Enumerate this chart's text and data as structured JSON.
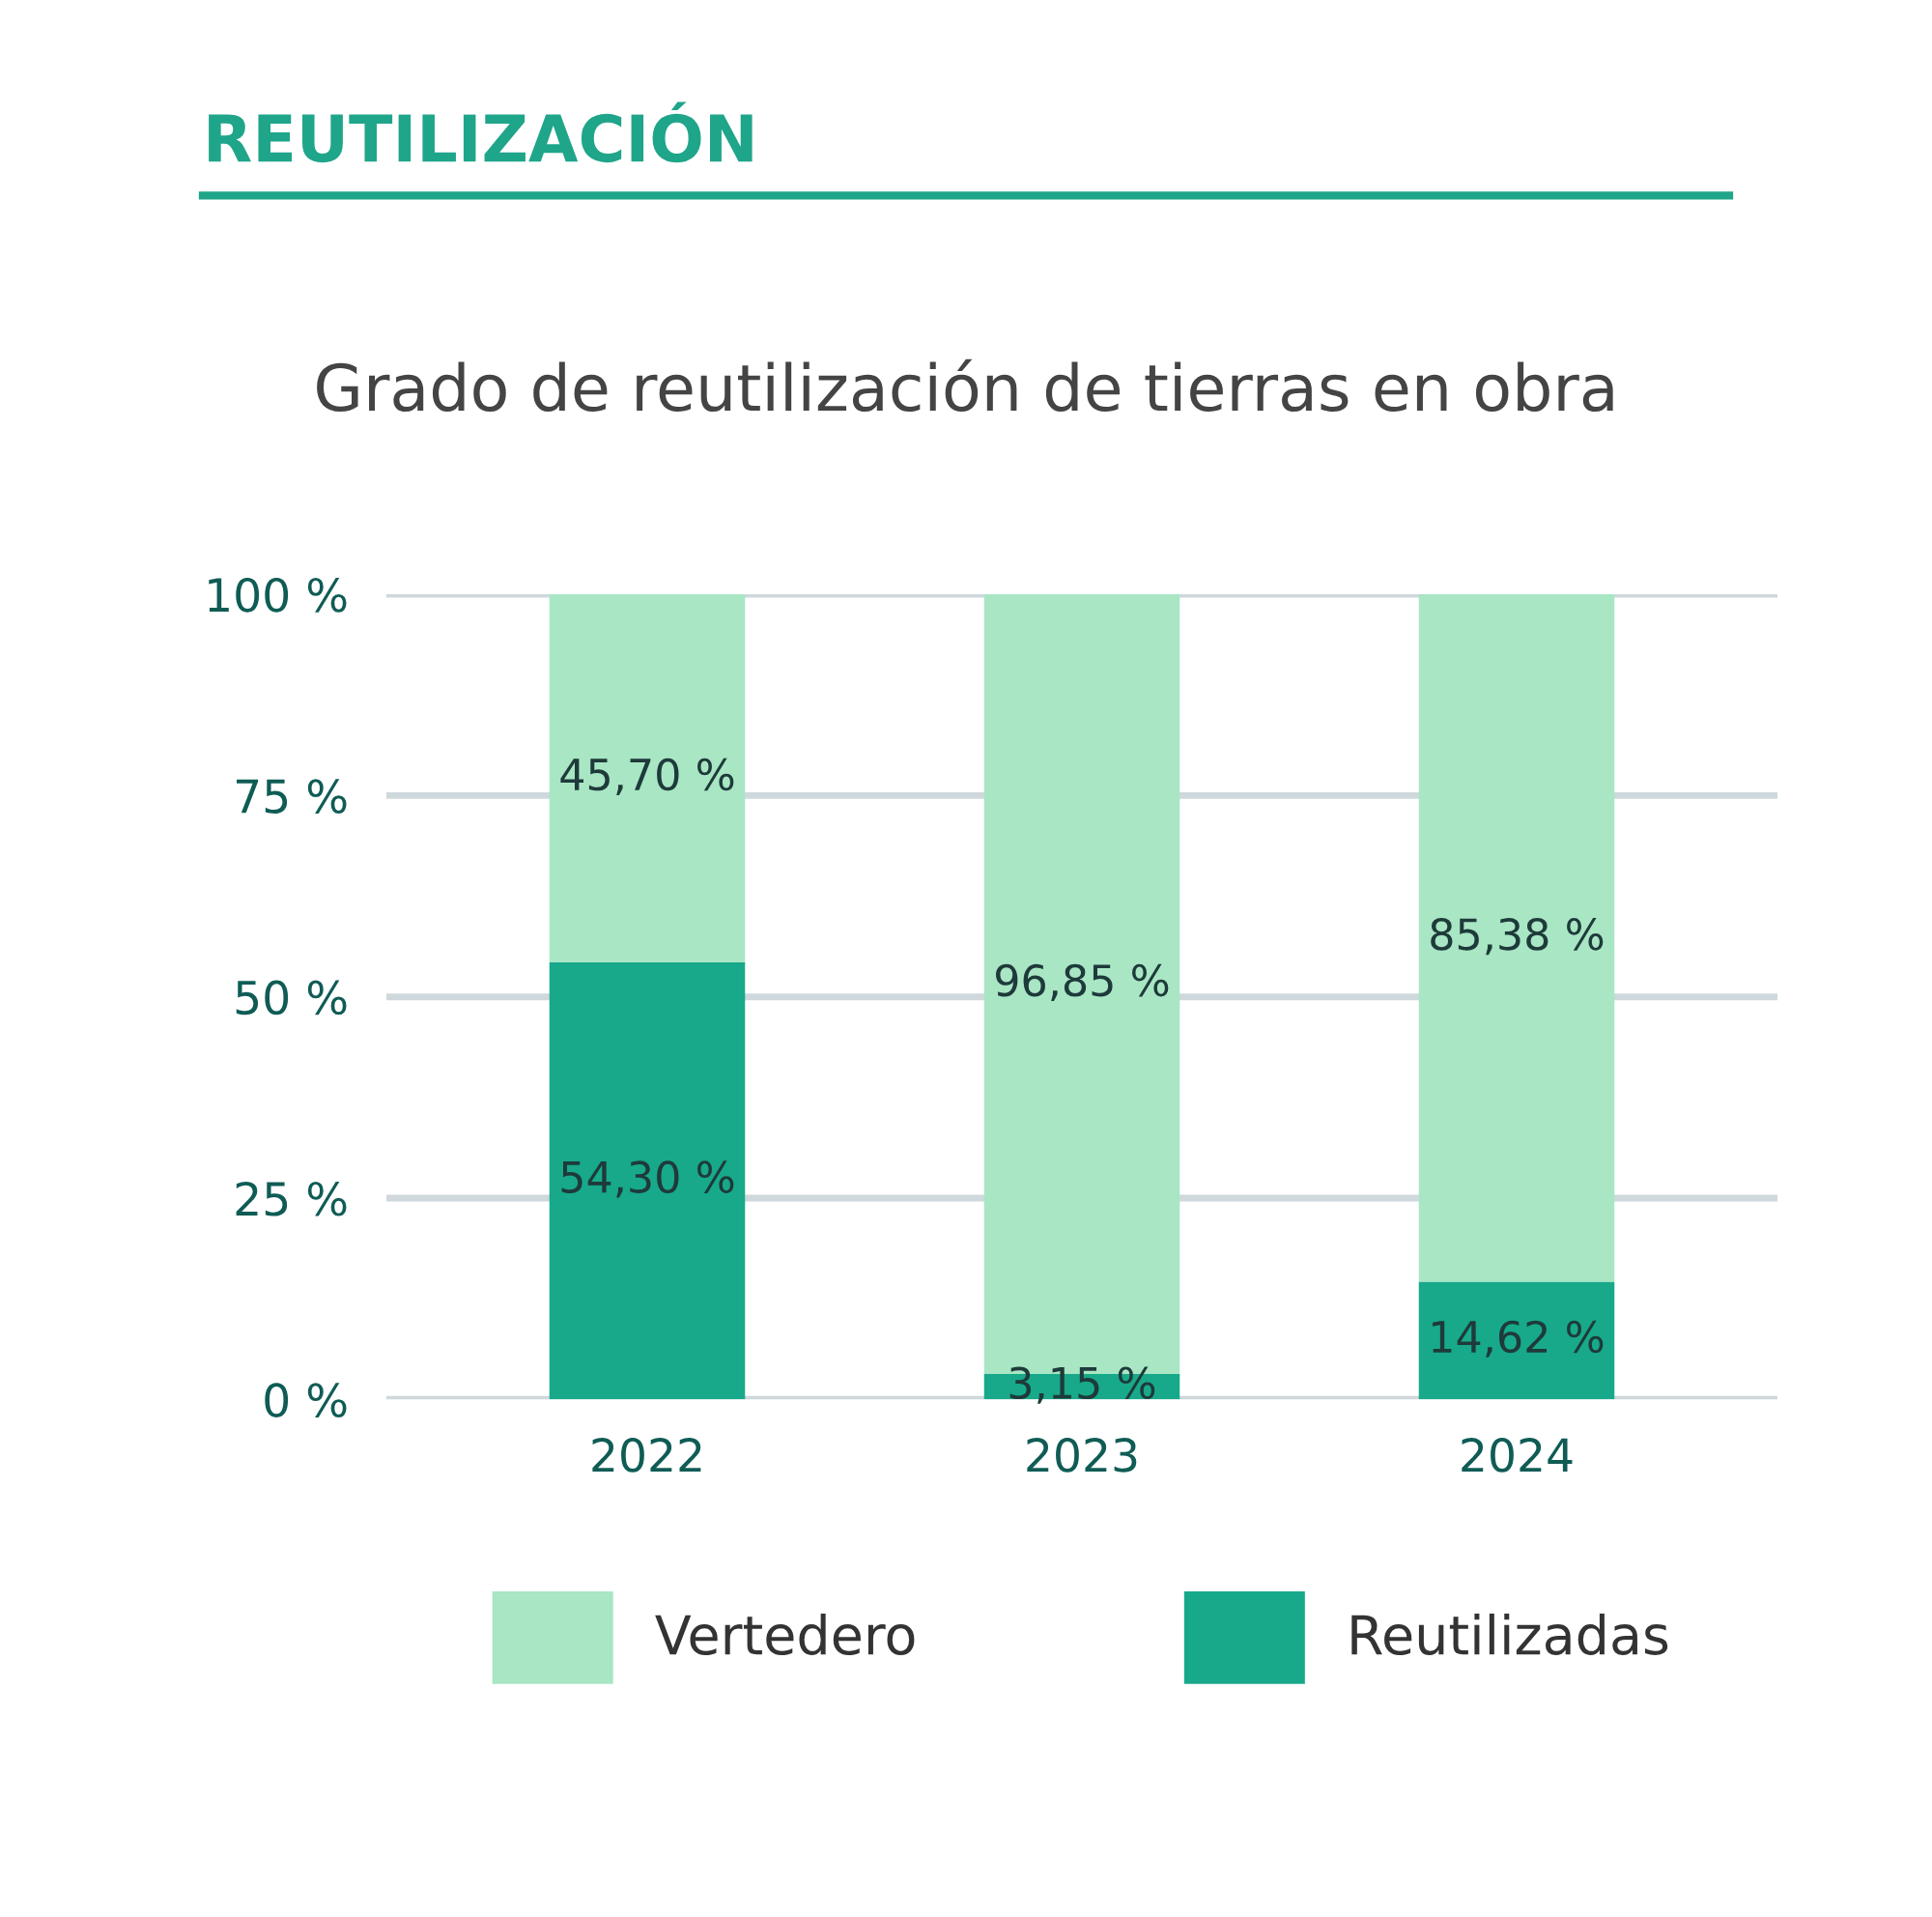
{
  "chart_data": {
    "type": "bar",
    "title": "REUTILIZACIÓN",
    "subtitle": "Grado de reutilización de tierras en obra",
    "categories": [
      "2022",
      "2023",
      "2024"
    ],
    "stacked": true,
    "series": [
      {
        "name": "Reutilizadas",
        "color": "#17a98a",
        "values": [
          54.3,
          3.15,
          14.62
        ],
        "value_labels": [
          "54,30 %",
          "3,15 %",
          "14,62 %"
        ]
      },
      {
        "name": "Vertedero",
        "color": "#a8e6c4",
        "values": [
          45.7,
          96.85,
          85.38
        ],
        "value_labels": [
          "45,70 %",
          "96,85 %",
          "85,38 %"
        ]
      }
    ],
    "ylim": [
      0,
      100
    ],
    "yticks": [
      {
        "value": 0,
        "label": "0 %"
      },
      {
        "value": 25,
        "label": "25 %"
      },
      {
        "value": 50,
        "label": "50 %"
      },
      {
        "value": 75,
        "label": "75 %"
      },
      {
        "value": 100,
        "label": "100 %"
      }
    ],
    "grid": "y",
    "legend": "bottom"
  }
}
